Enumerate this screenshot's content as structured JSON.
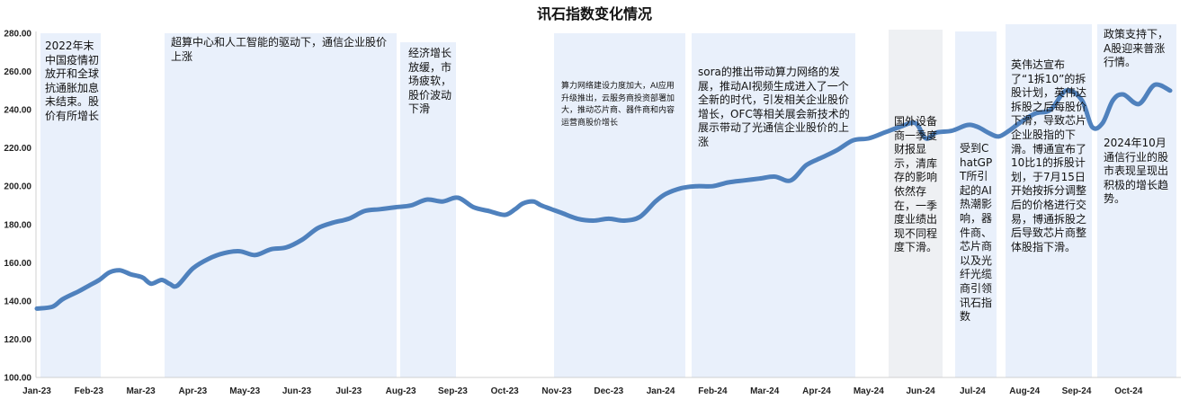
{
  "chart_data": {
    "type": "line",
    "title": "讯石指数变化情况",
    "xlabel": "",
    "ylabel": "",
    "ylim": [
      100,
      280
    ],
    "yticks": [
      "100.00",
      "120.00",
      "140.00",
      "160.00",
      "180.00",
      "200.00",
      "220.00",
      "240.00",
      "260.00",
      "280.00"
    ],
    "xticks": [
      "Jan-23",
      "Feb-23",
      "Mar-23",
      "Apr-23",
      "May-23",
      "Jun-23",
      "Jul-23",
      "Aug-23",
      "Sep-23",
      "Oct-23",
      "Nov-23",
      "Dec-23",
      "Jan-24",
      "Feb-24",
      "Mar-24",
      "Apr-24",
      "May-24",
      "Jun-24",
      "Jul-24",
      "Aug-24",
      "Sep-24",
      "Oct-24"
    ],
    "grid": false,
    "line_color": "#4f81bd",
    "band_color": "#e9f0fb",
    "band_color_alt": "#eef0f3",
    "series": [
      {
        "x": [
          0,
          0.3,
          0.5,
          0.8,
          1.0,
          1.2,
          1.4,
          1.6,
          1.8,
          1.95,
          2.05,
          2.2,
          2.4,
          2.55,
          2.7,
          3.0,
          3.3,
          3.6,
          3.9,
          4.2,
          4.5,
          4.8,
          5.1,
          5.4,
          5.7,
          6.0,
          6.3,
          6.6,
          6.9,
          7.2,
          7.5,
          7.8,
          8.1,
          8.4,
          8.7,
          9.0,
          9.2,
          9.35,
          9.55,
          9.7,
          9.9,
          10.1,
          10.4,
          10.7,
          11.0,
          11.3,
          11.6,
          11.9,
          12.1,
          12.4,
          12.7,
          13.0,
          13.3,
          13.6,
          13.9,
          14.2,
          14.5,
          14.8,
          15.1,
          15.4,
          15.7,
          16.0,
          16.3,
          16.6,
          16.9,
          17.1,
          17.3,
          17.6,
          17.9,
          18.1,
          18.3,
          18.5,
          18.7,
          18.9,
          19.2,
          19.5,
          19.8,
          20.1,
          20.3,
          20.5,
          20.7,
          20.9,
          21.2,
          21.5,
          21.8
        ],
        "values": [
          136,
          137,
          141,
          145,
          148,
          151,
          155,
          156,
          154,
          153,
          152,
          149,
          151,
          149,
          148,
          157,
          162,
          165,
          166,
          164,
          167,
          168,
          172,
          178,
          181,
          183,
          187,
          188,
          189,
          190,
          193,
          192,
          194,
          189,
          187,
          185,
          188,
          191,
          192,
          190,
          188,
          186,
          183,
          182,
          183,
          182,
          184,
          192,
          196,
          199,
          200,
          200,
          202,
          203,
          204,
          205,
          203,
          211,
          215,
          219,
          224,
          225,
          228,
          231,
          233,
          225,
          228,
          229,
          232,
          231,
          228,
          226,
          229,
          233,
          238,
          240,
          250,
          245,
          231,
          233,
          245,
          248,
          243,
          253,
          250
        ]
      }
    ],
    "annotations": [
      {
        "text": "2022年末中国疫情初放开和全球抗通胀加息未结束。股价有所增长"
      },
      {
        "text": "超算中心和人工智能的驱动下，通信企业股价上涨"
      },
      {
        "text": "经济增长放缓，市场疲软，股价波动下滑"
      },
      {
        "text": "算力网络建设力度加大，AI应用升级推出，云服务商投资部署加大，推动芯片商、器件商和内容运营商股价增长"
      },
      {
        "text": "sora的推出带动算力网络的发展，推动AI视频生成进入了一个全新的时代，引发相关企业股价增长，OFC等相关展会新技术的展示带动了光通信企业股价的上涨"
      },
      {
        "text": "国外设备商一季度财报显示，清库存的影响依然存在，一季度业绩出现不同程度下滑。"
      },
      {
        "text": "受到ChatGPT所引起的AI热潮影响，器件商、芯片商以及光纤光缆商引领讯石指数"
      },
      {
        "text": "英伟达宣布了“1拆10”的拆股计划，英伟达拆股之后每股价下滑，导致芯片企业股指的下滑。博通宣布了10比1的拆股计划，于7月15日开始按拆分调整后的价格进行交易，博通拆股之后导致芯片商整体股指下滑。"
      },
      {
        "text": "政策支持下，A股迎来普涨行情。"
      },
      {
        "text": "2024年10月通信行业的股市表现呈现出积极的增长趋势。"
      }
    ]
  }
}
